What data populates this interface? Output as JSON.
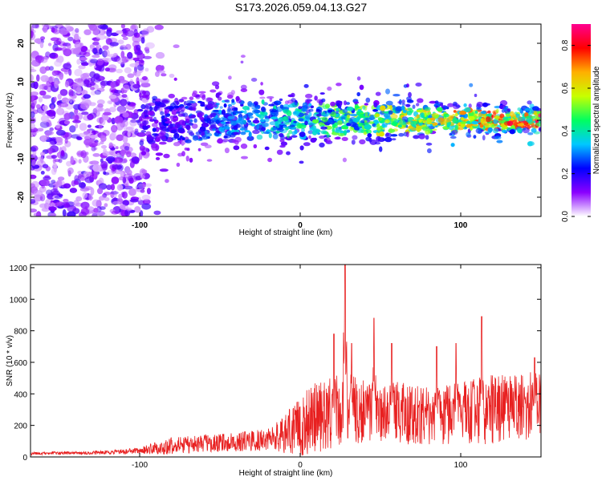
{
  "title": "S173.2026.059.04.13.G27",
  "colors": {
    "background": "#ffffff",
    "axis": "#000000",
    "snr_line": "#e82020",
    "spectrogram_base": "#6a00ff"
  },
  "chart_data": [
    {
      "type": "heatmap",
      "name": "spectrogram",
      "xlabel": "Height of straight line (km)",
      "ylabel": "Frequency (Hz)",
      "xlim": [
        -168,
        150
      ],
      "ylim": [
        -25,
        25
      ],
      "xticks": [
        -100,
        0,
        100
      ],
      "xtick_labels": [
        "-100",
        "0",
        "100"
      ],
      "yticks": [
        -20,
        -10,
        0,
        10,
        20
      ],
      "ytick_labels": [
        "-20",
        "-10",
        "0",
        "10",
        "20"
      ],
      "colorbar": {
        "label": "Normalized spectral amplitude",
        "range": [
          0.0,
          0.9
        ],
        "ticks": [
          0.0,
          0.2,
          0.4,
          0.6,
          0.8
        ],
        "tick_labels": [
          "0.0",
          "0.2",
          "0.4",
          "0.6",
          "0.8"
        ],
        "stops": [
          "#ffffff",
          "#8a00ff",
          "#0000ff",
          "#00c8ff",
          "#00ff60",
          "#c8ff00",
          "#ffb000",
          "#ff0000",
          "#ff0090"
        ]
      },
      "description_of_band": {
        "scattered_noise_x_range": [
          -168,
          -95
        ],
        "band_center_freq": 0,
        "band_halfwidth_hz": [
          6,
          2
        ]
      }
    },
    {
      "type": "line",
      "name": "snr",
      "xlabel": "Height of straight line (km)",
      "ylabel": "SNR (10 * v/v)",
      "xlim": [
        -168,
        150
      ],
      "ylim": [
        0,
        1220
      ],
      "xticks": [
        -100,
        0,
        100
      ],
      "xtick_labels": [
        "-100",
        "0",
        "100"
      ],
      "yticks": [
        0,
        200,
        400,
        600,
        800,
        1000,
        1200
      ],
      "ytick_labels": [
        "0",
        "200",
        "400",
        "600",
        "800",
        "1000",
        "1200"
      ],
      "envelope": {
        "x": [
          -168,
          -140,
          -120,
          -100,
          -90,
          -80,
          -60,
          -40,
          -20,
          -10,
          0,
          10,
          20,
          30,
          40,
          60,
          80,
          100,
          120,
          140,
          150
        ],
        "mean": [
          22,
          25,
          28,
          40,
          55,
          70,
          85,
          95,
          110,
          140,
          200,
          250,
          280,
          300,
          290,
          280,
          260,
          280,
          300,
          320,
          330
        ],
        "spread": [
          10,
          10,
          12,
          20,
          40,
          55,
          55,
          60,
          70,
          120,
          200,
          230,
          230,
          230,
          200,
          200,
          180,
          200,
          220,
          220,
          230
        ]
      },
      "peaks": [
        {
          "x": 21,
          "y": 780
        },
        {
          "x": 28,
          "y": 1220
        },
        {
          "x": 32,
          "y": 720
        },
        {
          "x": 46,
          "y": 880
        },
        {
          "x": 57,
          "y": 720
        },
        {
          "x": 85,
          "y": 700
        },
        {
          "x": 97,
          "y": 720
        },
        {
          "x": 113,
          "y": 890
        },
        {
          "x": 146,
          "y": 630
        }
      ]
    }
  ]
}
